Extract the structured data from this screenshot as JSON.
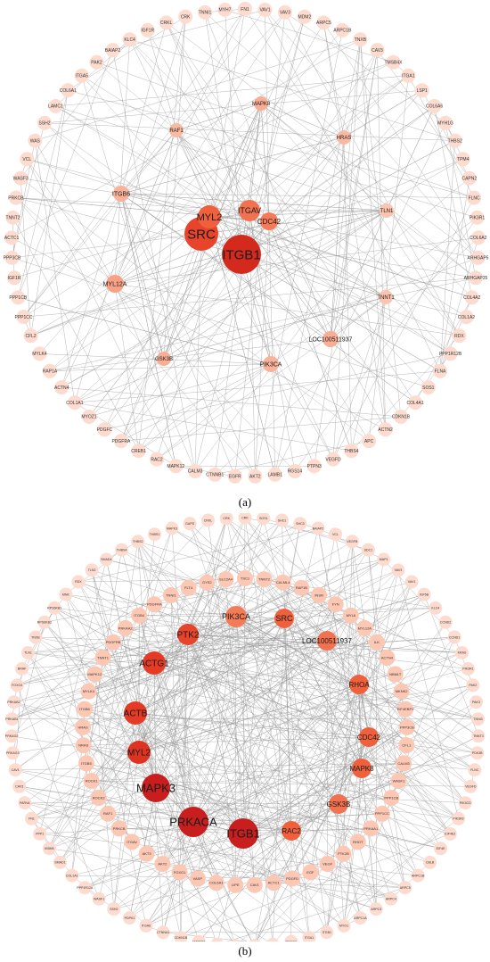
{
  "panel_a": {
    "caption": "(a)",
    "ring": [
      "FN1",
      "VAV1",
      "VAV3",
      "MDM2",
      "ARPC5",
      "ARPC1B",
      "TNXB",
      "CAV3",
      "TMSB4X",
      "ITGA1",
      "LSP1",
      "COL6A6",
      "MYH1G",
      "THBS2",
      "TPM4",
      "CAPN2",
      "FLNC",
      "PIK3R1",
      "COL6A2",
      "ARHGAP5",
      "ARHGAP35",
      "COL4A2",
      "COL1A2",
      "RDX",
      "PPP1R12B",
      "FLNA",
      "SOS1",
      "COL4A1",
      "CDKN1B",
      "ACTN2",
      "APC",
      "THBS4",
      "VEGFD",
      "PTPN3",
      "RGS14",
      "LAMB1",
      "AKT2",
      "EGFR",
      "CTNNB1",
      "CALM3",
      "MAPK12",
      "RAC2",
      "CREB1",
      "PDGFRA",
      "PDGFC",
      "MYOZ1",
      "COL1A1",
      "ACTN4",
      "RAP1A",
      "MYLK4",
      "CFL2",
      "PPP1CC",
      "PPP1CB",
      "IGF1R",
      "PPP3CB",
      "ACTC1",
      "TNNT2",
      "PRKCB",
      "WASF3",
      "VCL",
      "WAS",
      "SSH2",
      "LAMC1",
      "COL6A1",
      "ITGA5",
      "PAK2",
      "BAIAP2",
      "KLC4",
      "IGF1R",
      "CRKL",
      "CRK",
      "TNNI1",
      "MYH7"
    ],
    "inner": [
      {
        "label": "SRC"
      },
      {
        "label": "ITGB1"
      },
      {
        "label": "MYL2"
      },
      {
        "label": "ITGAV"
      },
      {
        "label": "CDC42"
      },
      {
        "label": "MYL12A"
      },
      {
        "label": "ITGB6"
      },
      {
        "label": "RAF1"
      },
      {
        "label": "MAPK8"
      },
      {
        "label": "HRAS"
      },
      {
        "label": "TLN1"
      },
      {
        "label": "TNNT1"
      },
      {
        "label": "LOC100511937"
      },
      {
        "label": "PIK3CA"
      },
      {
        "label": "GSK3B"
      }
    ]
  },
  "panel_b": {
    "caption": "(b)",
    "ring": [
      "CRK",
      "SOS1",
      "SHC1",
      "SHC3",
      "BAIAP2",
      "VCL",
      "VEGFB",
      "SDC1",
      "MAP1",
      "VAV3",
      "VAV1",
      "KIF5B",
      "KLC4",
      "CCND2",
      "CCND1",
      "KRAS",
      "PIK3R1",
      "PAK2",
      "PAK3",
      "TNNI3",
      "TNNT3",
      "PDK3B",
      "FLNC",
      "VEGFD",
      "PIK3CD",
      "PIK3R2",
      "EIF4E2",
      "EIF4E",
      "CBLB",
      "ARPC1B",
      "ARPC5",
      "ARPC4",
      "ARPC3",
      "ARPC1A",
      "MYO1",
      "ITGB1",
      "ITGA1",
      "MYH1G",
      "ACACA",
      "COL4A1",
      "SPHK1",
      "IKBB",
      "MAP2K2",
      "CDKN1B",
      "CTNNA1",
      "ITGA6",
      "PDPK1",
      "SSH2",
      "WASF1",
      "PPP1R12A",
      "COL1A1",
      "SMAD1",
      "IKBKB",
      "PPP1",
      "FN1",
      "PARVA",
      "CAV3",
      "CAV1",
      "PRKAG3",
      "PRKAG2",
      "PRKAB1",
      "PRKAB2",
      "FOXO4",
      "BRAF",
      "TLN1",
      "TNXB",
      "RPS6KB2",
      "RPS6KB1",
      "MNK",
      "RDX",
      "TLN2",
      "SMAD4",
      "THBS4",
      "THBS2",
      "THBS1",
      "MAPK3",
      "GAPD",
      "CRKL",
      "CRK"
    ],
    "mid": [
      "TSC1",
      "TNNT2",
      "CALML4",
      "RAP1B",
      "INSR",
      "FYN",
      "MYL6",
      "MYL12A",
      "ILK",
      "ACTN4",
      "NBMLT",
      "MKNK2",
      "EIF4EBP1",
      "PPP3CB",
      "CFL1",
      "CALM3",
      "WASF1",
      "PPP1CB",
      "PPP1CC",
      "PRKAA1",
      "RHOT",
      "PTK2B",
      "VEGF",
      "EGF",
      "PDGFD",
      "ACTC1",
      "CAV1",
      "LIPE",
      "COL6A1",
      "VASP",
      "FOXO1",
      "AKT2",
      "AKT3",
      "ITGAV",
      "PRKCB",
      "RAF1",
      "ROCK2",
      "ROCK1",
      "ITGB5",
      "NRAS",
      "HRAS",
      "ITGB6",
      "MYLK4",
      "MAPK12",
      "TNNT1",
      "PDGFRB",
      "PRKAA2",
      "ITGB4",
      "PDGFRA",
      "TNNI1",
      "FLT4",
      "GYS2",
      "SLC2A4"
    ],
    "inner": [
      {
        "label": "PIK3CA"
      },
      {
        "label": "SRC"
      },
      {
        "label": "PTK2"
      },
      {
        "label": "LOC100511937"
      },
      {
        "label": "ACTG1"
      },
      {
        "label": "RHOA"
      },
      {
        "label": "ACTB"
      },
      {
        "label": "CDC42"
      },
      {
        "label": "MYL2"
      },
      {
        "label": "MAPK8"
      },
      {
        "label": "MAPK3"
      },
      {
        "label": "GSK3B"
      },
      {
        "label": "PRKACA"
      },
      {
        "label": "ITGB1"
      },
      {
        "label": "RAC2"
      }
    ]
  }
}
